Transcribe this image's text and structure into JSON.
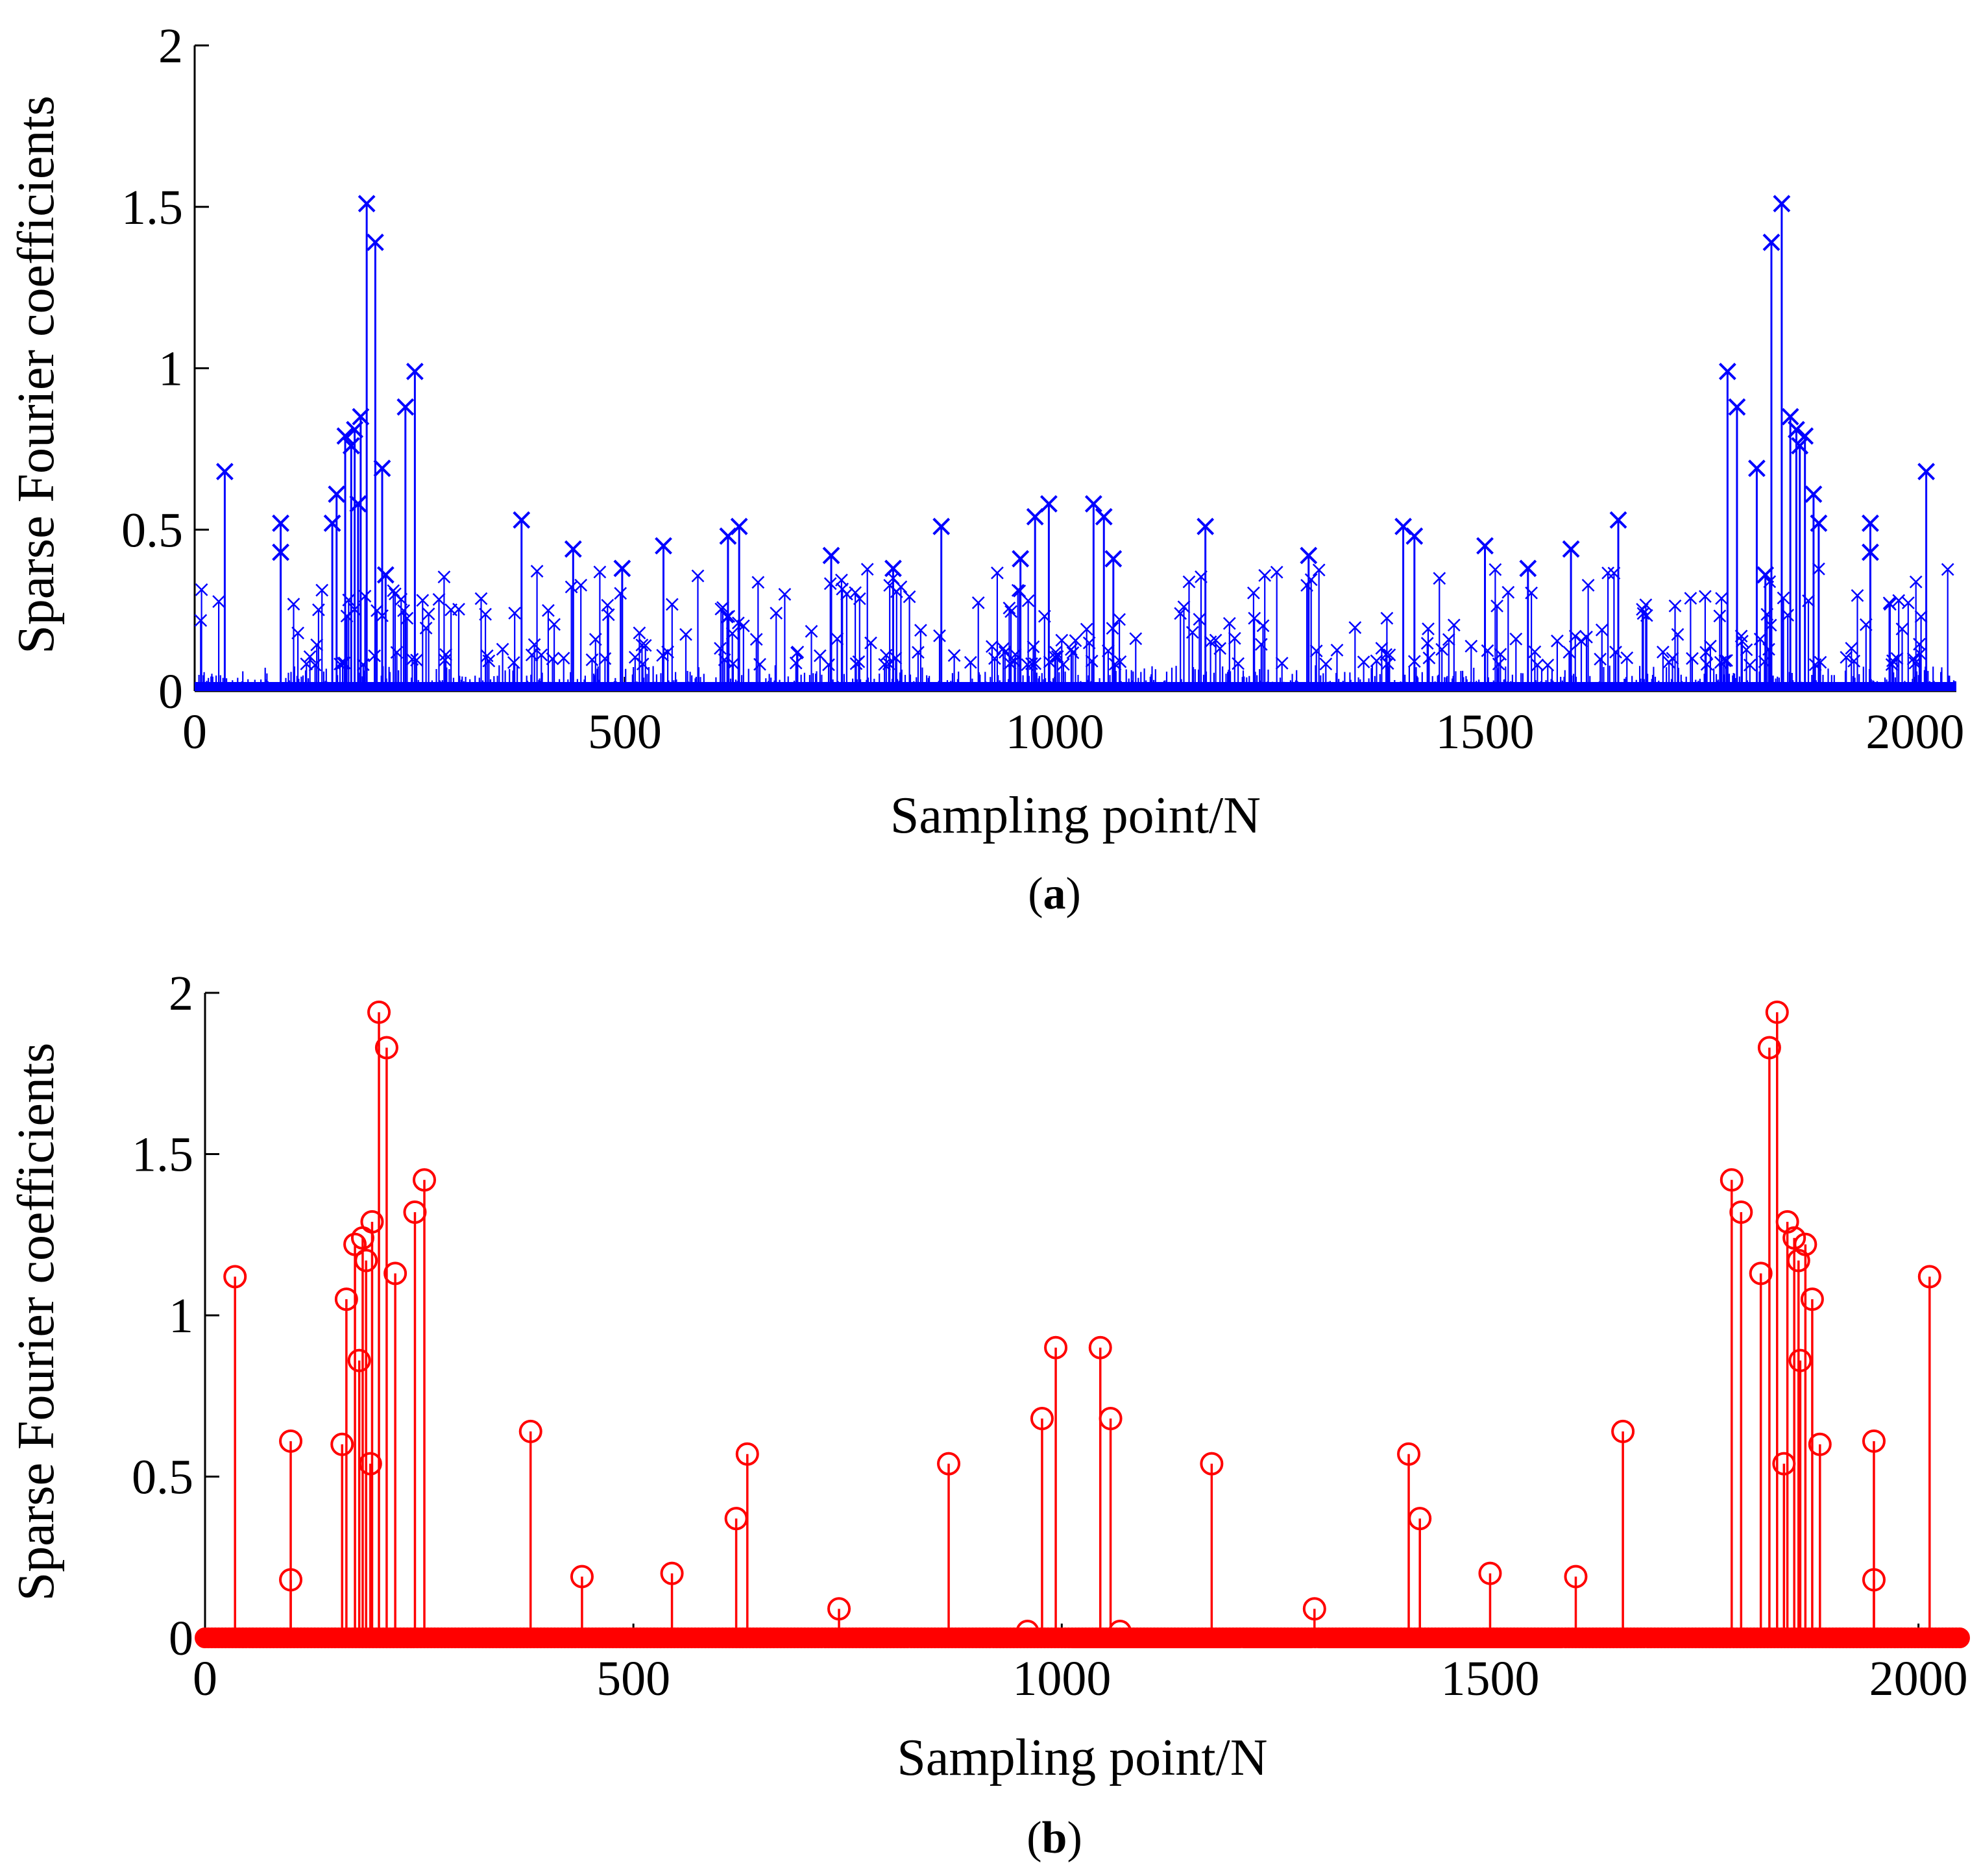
{
  "chart_data": [
    {
      "type": "stem",
      "marker": "x",
      "color": "#0000FF",
      "title": "",
      "caption": "(a)",
      "caption_letter": "a",
      "xlabel": "Sampling point/N",
      "ylabel": "Sparse Fourier coefficients",
      "xlim": [
        0,
        2048
      ],
      "ylim": [
        0,
        2
      ],
      "xticks": [
        0,
        500,
        1000,
        1500,
        2000
      ],
      "yticks": [
        0,
        0.5,
        1,
        1.5,
        2
      ],
      "xtick_labels": [
        "0",
        "500",
        "1000",
        "1500",
        "2000"
      ],
      "ytick_labels": [
        "0",
        "0.5",
        "1",
        "1.5",
        "2"
      ],
      "peaks": [
        {
          "x": 35,
          "y": 0.68
        },
        {
          "x": 100,
          "y": 0.52
        },
        {
          "x": 100,
          "y": 0.43
        },
        {
          "x": 160,
          "y": 0.52
        },
        {
          "x": 165,
          "y": 0.61
        },
        {
          "x": 175,
          "y": 0.79
        },
        {
          "x": 182,
          "y": 0.76
        },
        {
          "x": 186,
          "y": 0.81
        },
        {
          "x": 190,
          "y": 0.58
        },
        {
          "x": 193,
          "y": 0.85
        },
        {
          "x": 200,
          "y": 1.51
        },
        {
          "x": 210,
          "y": 1.39
        },
        {
          "x": 218,
          "y": 0.69
        },
        {
          "x": 222,
          "y": 0.36
        },
        {
          "x": 245,
          "y": 0.88
        },
        {
          "x": 256,
          "y": 0.99
        },
        {
          "x": 380,
          "y": 0.53
        },
        {
          "x": 440,
          "y": 0.44
        },
        {
          "x": 497,
          "y": 0.38
        },
        {
          "x": 545,
          "y": 0.45
        },
        {
          "x": 620,
          "y": 0.48
        },
        {
          "x": 633,
          "y": 0.51
        },
        {
          "x": 740,
          "y": 0.42
        },
        {
          "x": 812,
          "y": 0.38
        },
        {
          "x": 868,
          "y": 0.51
        },
        {
          "x": 960,
          "y": 0.41
        },
        {
          "x": 977,
          "y": 0.54
        },
        {
          "x": 993,
          "y": 0.58
        },
        {
          "x": 1045,
          "y": 0.58
        },
        {
          "x": 1057,
          "y": 0.54
        },
        {
          "x": 1068,
          "y": 0.41
        },
        {
          "x": 1175,
          "y": 0.51
        },
        {
          "x": 1295,
          "y": 0.42
        },
        {
          "x": 1405,
          "y": 0.51
        },
        {
          "x": 1418,
          "y": 0.48
        },
        {
          "x": 1500,
          "y": 0.45
        },
        {
          "x": 1550,
          "y": 0.38
        },
        {
          "x": 1600,
          "y": 0.44
        },
        {
          "x": 1655,
          "y": 0.53
        },
        {
          "x": 1782,
          "y": 0.99
        },
        {
          "x": 1793,
          "y": 0.88
        },
        {
          "x": 1816,
          "y": 0.69
        },
        {
          "x": 1826,
          "y": 0.36
        },
        {
          "x": 1833,
          "y": 1.39
        },
        {
          "x": 1845,
          "y": 1.51
        },
        {
          "x": 1855,
          "y": 0.85
        },
        {
          "x": 1862,
          "y": 0.81
        },
        {
          "x": 1866,
          "y": 0.76
        },
        {
          "x": 1872,
          "y": 0.79
        },
        {
          "x": 1882,
          "y": 0.61
        },
        {
          "x": 1888,
          "y": 0.52
        },
        {
          "x": 1948,
          "y": 0.52
        },
        {
          "x": 1948,
          "y": 0.43
        },
        {
          "x": 2013,
          "y": 0.68
        }
      ],
      "noise_level_max": 0.38,
      "n_points": 2048
    },
    {
      "type": "stem",
      "marker": "o",
      "color": "#FF0000",
      "title": "",
      "caption": "(b)",
      "caption_letter": "b",
      "xlabel": "Sampling point/N",
      "ylabel": "Sparse Fourier coefficients",
      "xlim": [
        0,
        2048
      ],
      "ylim": [
        0,
        2
      ],
      "xticks": [
        0,
        500,
        1000,
        1500,
        2000
      ],
      "yticks": [
        0,
        0.5,
        1,
        1.5,
        2
      ],
      "xtick_labels": [
        "0",
        "500",
        "1000",
        "1500",
        "2000"
      ],
      "ytick_labels": [
        "0",
        "0.5",
        "1",
        "1.5",
        "2"
      ],
      "peaks": [
        {
          "x": 35,
          "y": 1.12
        },
        {
          "x": 100,
          "y": 0.61
        },
        {
          "x": 100,
          "y": 0.18
        },
        {
          "x": 160,
          "y": 0.6
        },
        {
          "x": 165,
          "y": 1.05
        },
        {
          "x": 175,
          "y": 1.22
        },
        {
          "x": 180,
          "y": 0.86
        },
        {
          "x": 184,
          "y": 1.24
        },
        {
          "x": 188,
          "y": 1.17
        },
        {
          "x": 193,
          "y": 0.54
        },
        {
          "x": 195,
          "y": 1.29
        },
        {
          "x": 203,
          "y": 1.94
        },
        {
          "x": 212,
          "y": 1.83
        },
        {
          "x": 222,
          "y": 1.13
        },
        {
          "x": 245,
          "y": 1.32
        },
        {
          "x": 256,
          "y": 1.42
        },
        {
          "x": 380,
          "y": 0.64
        },
        {
          "x": 440,
          "y": 0.19
        },
        {
          "x": 545,
          "y": 0.2
        },
        {
          "x": 620,
          "y": 0.37
        },
        {
          "x": 633,
          "y": 0.57
        },
        {
          "x": 740,
          "y": 0.09
        },
        {
          "x": 868,
          "y": 0.54
        },
        {
          "x": 960,
          "y": 0.02
        },
        {
          "x": 977,
          "y": 0.68
        },
        {
          "x": 993,
          "y": 0.9
        },
        {
          "x": 1045,
          "y": 0.9
        },
        {
          "x": 1057,
          "y": 0.68
        },
        {
          "x": 1068,
          "y": 0.02
        },
        {
          "x": 1175,
          "y": 0.54
        },
        {
          "x": 1295,
          "y": 0.09
        },
        {
          "x": 1405,
          "y": 0.57
        },
        {
          "x": 1418,
          "y": 0.37
        },
        {
          "x": 1500,
          "y": 0.2
        },
        {
          "x": 1600,
          "y": 0.19
        },
        {
          "x": 1655,
          "y": 0.64
        },
        {
          "x": 1782,
          "y": 1.42
        },
        {
          "x": 1793,
          "y": 1.32
        },
        {
          "x": 1816,
          "y": 1.13
        },
        {
          "x": 1826,
          "y": 1.83
        },
        {
          "x": 1835,
          "y": 1.94
        },
        {
          "x": 1843,
          "y": 0.54
        },
        {
          "x": 1847,
          "y": 1.29
        },
        {
          "x": 1855,
          "y": 1.24
        },
        {
          "x": 1860,
          "y": 1.17
        },
        {
          "x": 1862,
          "y": 0.86
        },
        {
          "x": 1868,
          "y": 1.22
        },
        {
          "x": 1876,
          "y": 1.05
        },
        {
          "x": 1885,
          "y": 0.6
        },
        {
          "x": 1948,
          "y": 0.61
        },
        {
          "x": 1948,
          "y": 0.18
        },
        {
          "x": 2013,
          "y": 1.12
        }
      ],
      "baseline_markers": true,
      "n_points": 2048
    }
  ]
}
